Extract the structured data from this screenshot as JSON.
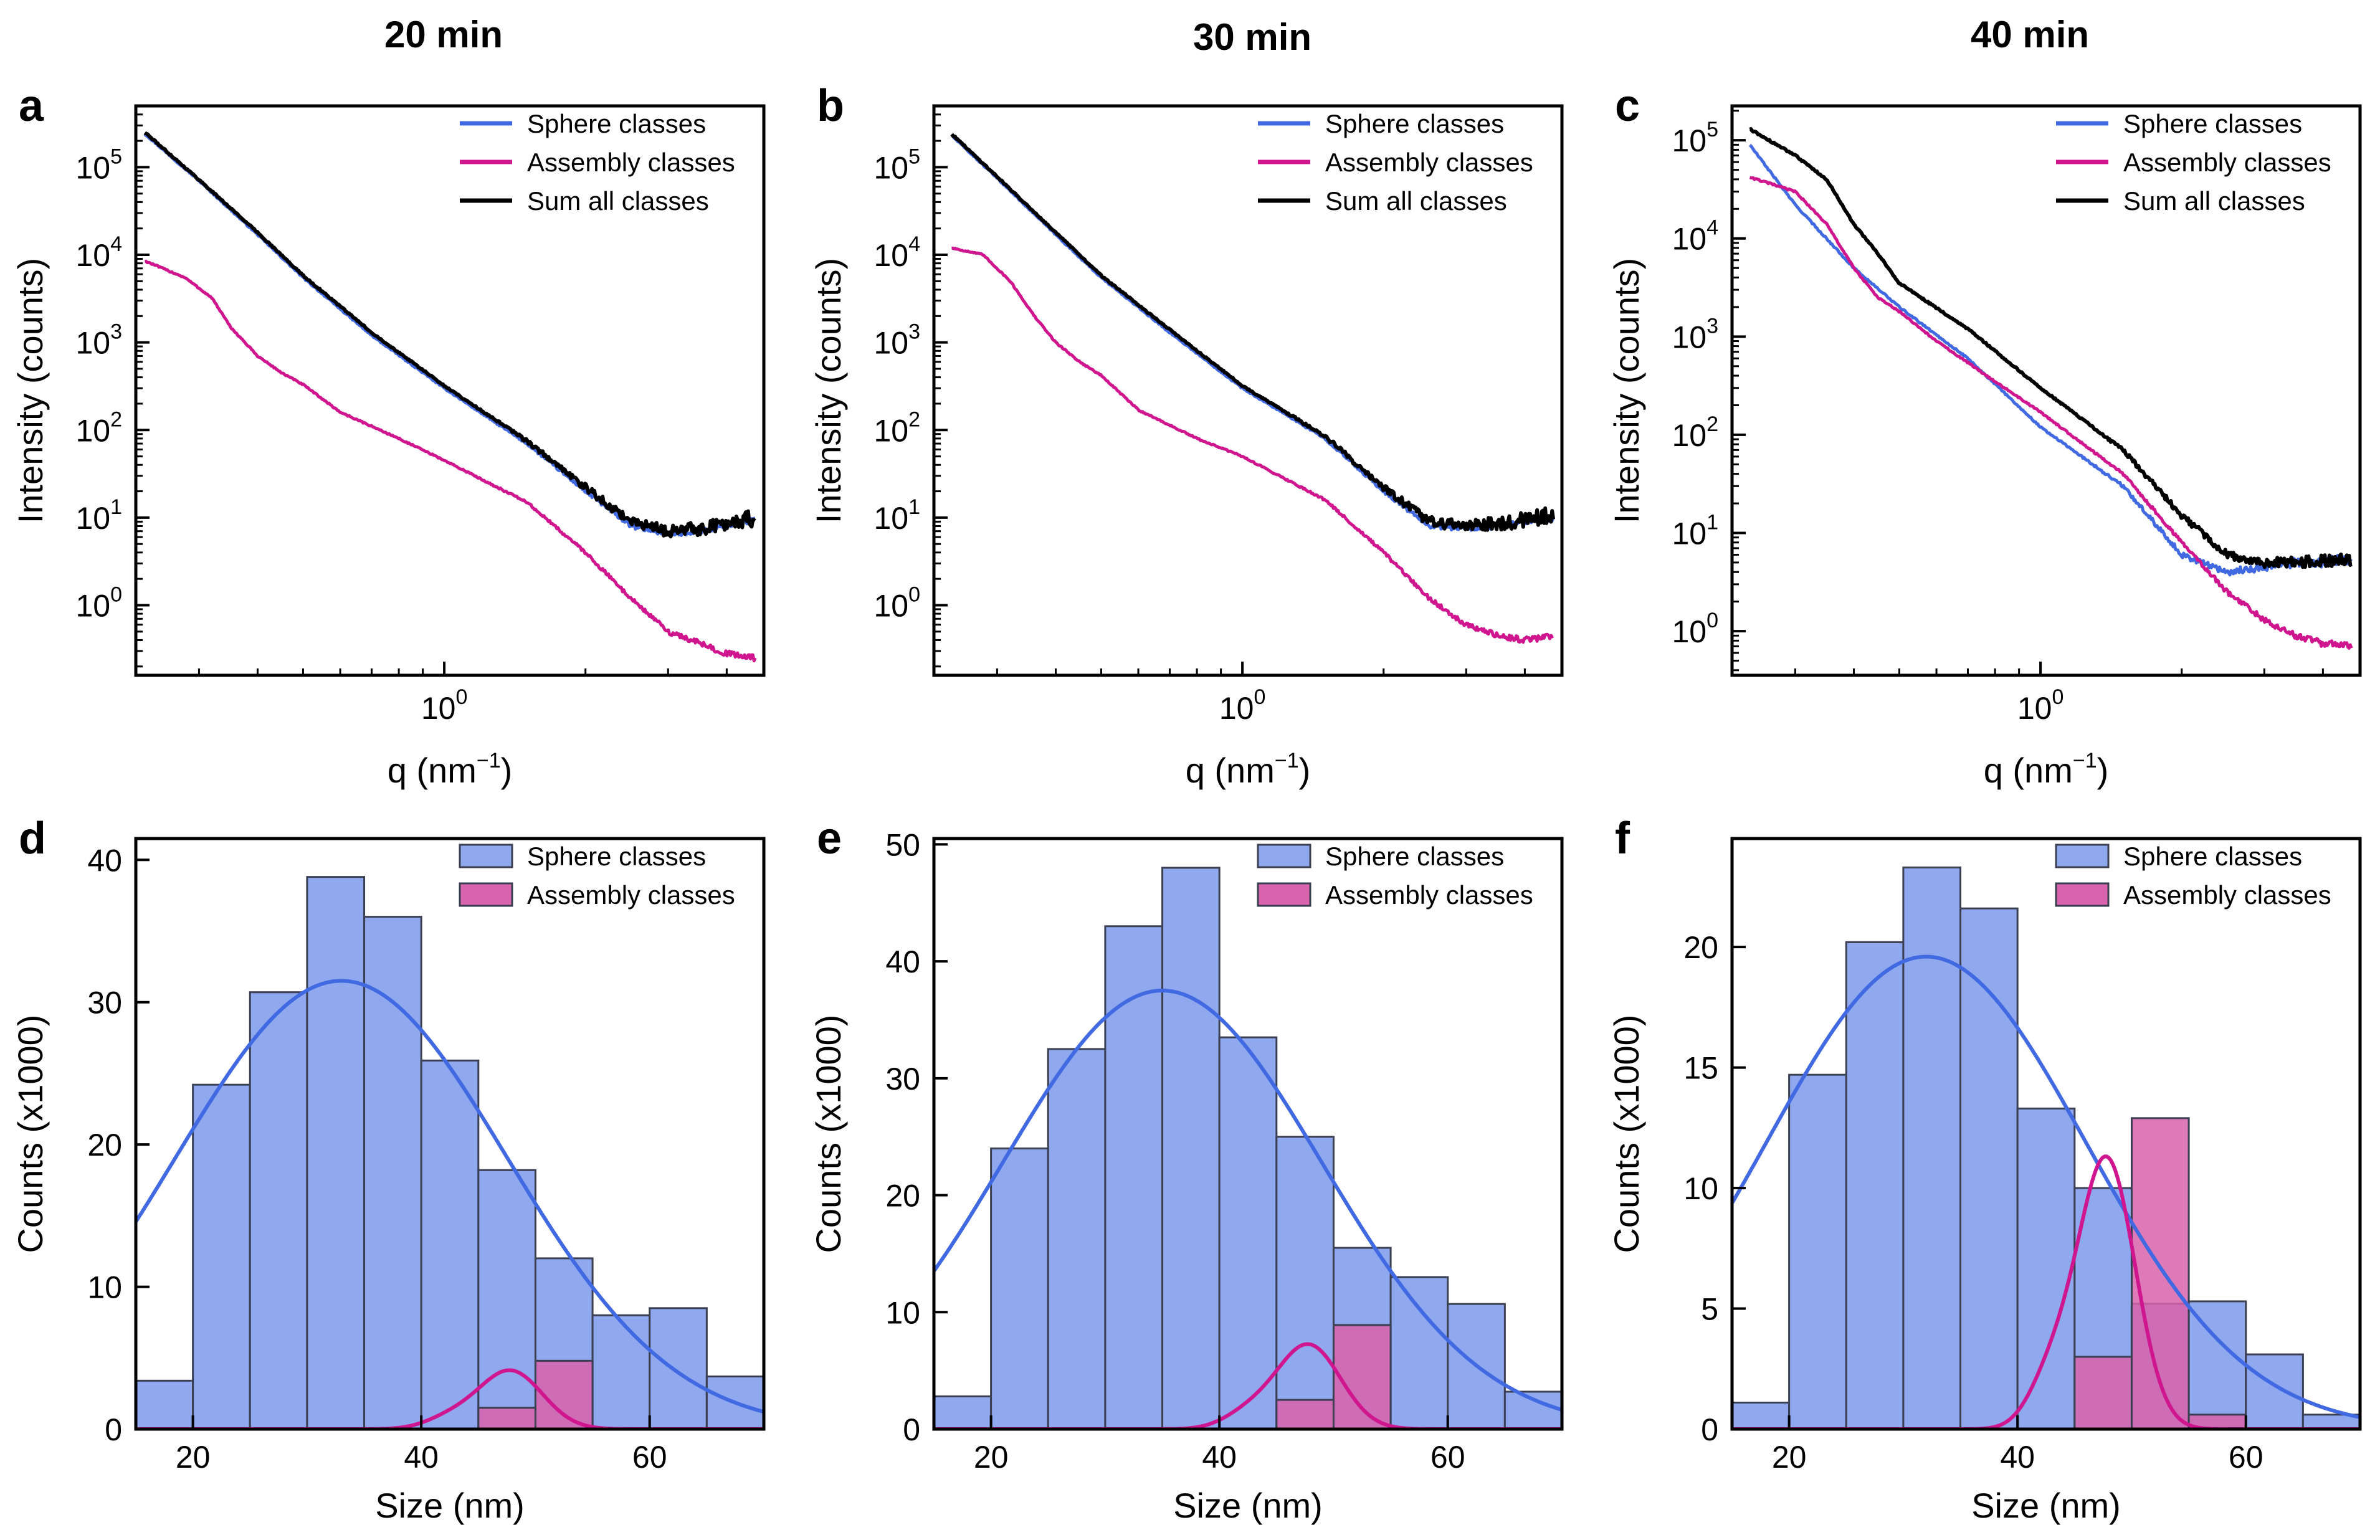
{
  "column_titles": [
    "20 min",
    "30 min",
    "40 min"
  ],
  "colors": {
    "sphere": "#4169e1",
    "assembly": "#d0168f",
    "sum": "#000000",
    "sphere_hist_fill": "#8fa8ee",
    "assembly_hist_fill": "#d963ac"
  },
  "chart_data": [
    {
      "panel": "a",
      "column_title": "20 min",
      "type": "line",
      "scale": "log-log",
      "xlabel": "q (nm",
      "xlabel_sup": "−1",
      "xlabel_tail": ")",
      "ylabel": "Intensity (counts)",
      "xlim": [
        0.22,
        4.8
      ],
      "ylim_exp": [
        -0.8,
        5.7
      ],
      "xticks": [
        {
          "value": 1,
          "label": "10",
          "sup": "0"
        }
      ],
      "yticks": [
        {
          "value": 0,
          "label": "10",
          "sup": "0"
        },
        {
          "value": 1,
          "label": "10",
          "sup": "1"
        },
        {
          "value": 2,
          "label": "10",
          "sup": "2"
        },
        {
          "value": 3,
          "label": "10",
          "sup": "3"
        },
        {
          "value": 4,
          "label": "10",
          "sup": "4"
        },
        {
          "value": 5,
          "label": "10",
          "sup": "5"
        }
      ],
      "legend": [
        "Sphere classes",
        "Assembly classes",
        "Sum all classes"
      ],
      "series": [
        {
          "name": "Sphere classes",
          "color": "#4169e1",
          "noise": 0.03,
          "points": [
            [
              0.23,
              240000
            ],
            [
              0.3,
              70000
            ],
            [
              0.4,
              17000
            ],
            [
              0.5,
              5500
            ],
            [
              0.7,
              1200
            ],
            [
              1.0,
              300
            ],
            [
              1.5,
              70
            ],
            [
              2.0,
              20
            ],
            [
              2.5,
              8
            ],
            [
              3.0,
              6.5
            ],
            [
              3.5,
              7
            ],
            [
              4.0,
              8
            ],
            [
              4.6,
              9.5
            ]
          ]
        },
        {
          "name": "Assembly classes",
          "color": "#d0168f",
          "noise": 0.03,
          "points": [
            [
              0.23,
              8500
            ],
            [
              0.28,
              5500
            ],
            [
              0.32,
              3200
            ],
            [
              0.35,
              1500
            ],
            [
              0.4,
              700
            ],
            [
              0.45,
              450
            ],
            [
              0.5,
              330
            ],
            [
              0.6,
              160
            ],
            [
              0.8,
              80
            ],
            [
              1.0,
              45
            ],
            [
              1.5,
              15
            ],
            [
              2.0,
              4
            ],
            [
              2.5,
              1.2
            ],
            [
              3.0,
              0.5
            ],
            [
              3.5,
              0.37
            ],
            [
              4.0,
              0.28
            ],
            [
              4.6,
              0.25
            ]
          ]
        },
        {
          "name": "Sum all classes",
          "color": "#000000",
          "noise": 0.09,
          "points": [
            [
              0.23,
              250000
            ],
            [
              0.3,
              72000
            ],
            [
              0.4,
              18000
            ],
            [
              0.5,
              5800
            ],
            [
              0.7,
              1300
            ],
            [
              1.0,
              320
            ],
            [
              1.5,
              75
            ],
            [
              2.0,
              22
            ],
            [
              2.5,
              9
            ],
            [
              3.0,
              7
            ],
            [
              3.5,
              7.5
            ],
            [
              4.0,
              8.5
            ],
            [
              4.6,
              10
            ]
          ]
        }
      ]
    },
    {
      "panel": "b",
      "column_title": "30 min",
      "type": "line",
      "scale": "log-log",
      "xlabel": "q (nm",
      "xlabel_sup": "−1",
      "xlabel_tail": ")",
      "ylabel": "Intensity (counts)",
      "xlim": [
        0.22,
        4.8
      ],
      "ylim_exp": [
        -0.8,
        5.7
      ],
      "xticks": [
        {
          "value": 1,
          "label": "10",
          "sup": "0"
        }
      ],
      "yticks": [
        {
          "value": 0,
          "label": "10",
          "sup": "0"
        },
        {
          "value": 1,
          "label": "10",
          "sup": "1"
        },
        {
          "value": 2,
          "label": "10",
          "sup": "2"
        },
        {
          "value": 3,
          "label": "10",
          "sup": "3"
        },
        {
          "value": 4,
          "label": "10",
          "sup": "4"
        },
        {
          "value": 5,
          "label": "10",
          "sup": "5"
        }
      ],
      "legend": [
        "Sphere classes",
        "Assembly classes",
        "Sum all classes"
      ],
      "series": [
        {
          "name": "Sphere classes",
          "color": "#4169e1",
          "noise": 0.03,
          "points": [
            [
              0.24,
              230000
            ],
            [
              0.3,
              75000
            ],
            [
              0.4,
              17000
            ],
            [
              0.5,
              5500
            ],
            [
              0.7,
              1300
            ],
            [
              1.0,
              300
            ],
            [
              1.5,
              80
            ],
            [
              2.0,
              20
            ],
            [
              2.5,
              8
            ],
            [
              3.0,
              7.5
            ],
            [
              3.5,
              8
            ],
            [
              4.0,
              9
            ],
            [
              4.6,
              10
            ]
          ]
        },
        {
          "name": "Assembly classes",
          "color": "#d0168f",
          "noise": 0.03,
          "points": [
            [
              0.24,
              12000
            ],
            [
              0.28,
              10000
            ],
            [
              0.32,
              5000
            ],
            [
              0.36,
              2000
            ],
            [
              0.4,
              1000
            ],
            [
              0.45,
              600
            ],
            [
              0.5,
              420
            ],
            [
              0.6,
              170
            ],
            [
              0.8,
              80
            ],
            [
              1.0,
              50
            ],
            [
              1.5,
              16
            ],
            [
              2.0,
              4
            ],
            [
              2.5,
              1.2
            ],
            [
              3.0,
              0.6
            ],
            [
              3.5,
              0.45
            ],
            [
              4.0,
              0.4
            ],
            [
              4.6,
              0.45
            ]
          ]
        },
        {
          "name": "Sum all classes",
          "color": "#000000",
          "noise": 0.09,
          "points": [
            [
              0.24,
              240000
            ],
            [
              0.3,
              78000
            ],
            [
              0.4,
              18000
            ],
            [
              0.5,
              5800
            ],
            [
              0.7,
              1400
            ],
            [
              1.0,
              320
            ],
            [
              1.5,
              85
            ],
            [
              2.0,
              22
            ],
            [
              2.5,
              9
            ],
            [
              3.0,
              8
            ],
            [
              3.5,
              8.5
            ],
            [
              4.0,
              9.5
            ],
            [
              4.6,
              11
            ]
          ]
        }
      ]
    },
    {
      "panel": "c",
      "column_title": "40 min",
      "type": "line",
      "scale": "log-log",
      "xlabel": "q (nm",
      "xlabel_sup": "−1",
      "xlabel_tail": ")",
      "ylabel": "Intensity (counts)",
      "xlim": [
        0.22,
        4.8
      ],
      "ylim_exp": [
        -0.45,
        5.35
      ],
      "xticks": [
        {
          "value": 1,
          "label": "10",
          "sup": "0"
        }
      ],
      "yticks": [
        {
          "value": 0,
          "label": "10",
          "sup": "0"
        },
        {
          "value": 1,
          "label": "10",
          "sup": "1"
        },
        {
          "value": 2,
          "label": "10",
          "sup": "2"
        },
        {
          "value": 3,
          "label": "10",
          "sup": "3"
        },
        {
          "value": 4,
          "label": "10",
          "sup": "4"
        },
        {
          "value": 5,
          "label": "10",
          "sup": "5"
        }
      ],
      "legend": [
        "Sphere classes",
        "Assembly classes",
        "Sum all classes"
      ],
      "series": [
        {
          "name": "Sphere classes",
          "color": "#4169e1",
          "noise": 0.05,
          "points": [
            [
              0.24,
              90000
            ],
            [
              0.3,
              22000
            ],
            [
              0.4,
              5000
            ],
            [
              0.5,
              2000
            ],
            [
              0.7,
              600
            ],
            [
              1.0,
              120
            ],
            [
              1.5,
              30
            ],
            [
              2.0,
              6
            ],
            [
              2.5,
              4
            ],
            [
              3.0,
              4.5
            ],
            [
              3.5,
              5
            ],
            [
              4.0,
              5
            ],
            [
              4.6,
              5.5
            ]
          ]
        },
        {
          "name": "Assembly classes",
          "color": "#d0168f",
          "noise": 0.03,
          "points": [
            [
              0.24,
              42000
            ],
            [
              0.3,
              30000
            ],
            [
              0.35,
              14000
            ],
            [
              0.4,
              5000
            ],
            [
              0.45,
              2500
            ],
            [
              0.5,
              1800
            ],
            [
              0.6,
              900
            ],
            [
              0.8,
              350
            ],
            [
              1.0,
              170
            ],
            [
              1.5,
              40
            ],
            [
              2.0,
              8
            ],
            [
              2.5,
              2.5
            ],
            [
              3.0,
              1.3
            ],
            [
              3.5,
              0.9
            ],
            [
              4.0,
              0.75
            ],
            [
              4.6,
              0.7
            ]
          ]
        },
        {
          "name": "Sum all classes",
          "color": "#000000",
          "noise": 0.06,
          "points": [
            [
              0.24,
              130000
            ],
            [
              0.3,
              70000
            ],
            [
              0.35,
              40000
            ],
            [
              0.4,
              14000
            ],
            [
              0.45,
              7000
            ],
            [
              0.5,
              3500
            ],
            [
              0.7,
              1200
            ],
            [
              1.0,
              300
            ],
            [
              1.5,
              70
            ],
            [
              2.0,
              15
            ],
            [
              2.5,
              6
            ],
            [
              3.0,
              5
            ],
            [
              3.5,
              5
            ],
            [
              4.0,
              5.2
            ],
            [
              4.6,
              5.5
            ]
          ]
        }
      ]
    },
    {
      "panel": "d",
      "type": "bar",
      "xlabel": "Size (nm)",
      "ylabel": "Counts (x1000)",
      "xlim": [
        15,
        70
      ],
      "ylim": [
        0,
        41.5
      ],
      "xticks": [
        20,
        40,
        60
      ],
      "yticks": [
        0,
        10,
        20,
        30,
        40
      ],
      "legend": [
        "Sphere classes",
        "Assembly classes"
      ],
      "bin_edges": [
        10,
        15,
        20,
        25,
        30,
        35,
        40,
        45,
        50,
        55,
        60,
        65,
        70,
        75
      ],
      "series": [
        {
          "name": "Sphere classes",
          "values": [
            0,
            3.4,
            24.2,
            30.7,
            38.8,
            36.0,
            25.9,
            18.2,
            12.0,
            8.0,
            8.5,
            3.7,
            0
          ]
        },
        {
          "name": "Assembly classes",
          "values": [
            0,
            0,
            0,
            0,
            0,
            0,
            0,
            1.5,
            4.8,
            0,
            0,
            0,
            0
          ]
        }
      ],
      "kde": [
        {
          "name": "Sphere classes",
          "mean": 33,
          "sd": 14.5,
          "peak": 31.5
        },
        {
          "name": "Assembly classes",
          "mean": 47.8,
          "sd": 2.8,
          "peak": 4.1,
          "shoulder": {
            "mean": 42.5,
            "sd": 2.2,
            "peak": 0.7
          }
        }
      ]
    },
    {
      "panel": "e",
      "type": "bar",
      "xlabel": "Size (nm)",
      "ylabel": "Counts (x1000)",
      "xlim": [
        15,
        70
      ],
      "ylim": [
        0,
        50.5
      ],
      "xticks": [
        20,
        40,
        60
      ],
      "yticks": [
        0,
        10,
        20,
        30,
        40,
        50
      ],
      "legend": [
        "Sphere classes",
        "Assembly classes"
      ],
      "bin_edges": [
        10,
        15,
        20,
        25,
        30,
        35,
        40,
        45,
        50,
        55,
        60,
        65,
        70,
        75
      ],
      "series": [
        {
          "name": "Sphere classes",
          "values": [
            0,
            2.8,
            24.0,
            32.5,
            43.0,
            48.0,
            33.5,
            25.0,
            15.5,
            13.0,
            10.7,
            3.2,
            0
          ]
        },
        {
          "name": "Assembly classes",
          "values": [
            0,
            0,
            0,
            0,
            0,
            0,
            0,
            2.5,
            8.9,
            0,
            0,
            0,
            0
          ]
        }
      ],
      "kde": [
        {
          "name": "Sphere classes",
          "mean": 35,
          "sd": 14,
          "peak": 37.5
        },
        {
          "name": "Assembly classes",
          "mean": 47.8,
          "sd": 2.8,
          "peak": 7.2,
          "shoulder": {
            "mean": 42.5,
            "sd": 2.2,
            "peak": 1.2
          }
        }
      ]
    },
    {
      "panel": "f",
      "type": "bar",
      "xlabel": "Size (nm)",
      "ylabel": "Counts (x1000)",
      "xlim": [
        15,
        70
      ],
      "ylim": [
        0,
        24.5
      ],
      "xticks": [
        20,
        40,
        60
      ],
      "yticks": [
        0,
        5,
        10,
        15,
        20
      ],
      "legend": [
        "Sphere classes",
        "Assembly classes"
      ],
      "bin_edges": [
        10,
        15,
        20,
        25,
        30,
        35,
        40,
        45,
        50,
        55,
        60,
        65,
        70,
        75
      ],
      "series": [
        {
          "name": "Sphere classes",
          "values": [
            0,
            1.1,
            14.7,
            20.2,
            23.3,
            21.6,
            13.3,
            10.0,
            5.2,
            5.3,
            3.1,
            0.6,
            0
          ]
        },
        {
          "name": "Assembly classes",
          "values": [
            0,
            0,
            0,
            0,
            0,
            0,
            0,
            3.0,
            12.9,
            0.6,
            0,
            0,
            0
          ]
        }
      ],
      "kde": [
        {
          "name": "Sphere classes",
          "mean": 32,
          "sd": 14,
          "peak": 19.6
        },
        {
          "name": "Assembly classes",
          "mean": 47.8,
          "sd": 2.5,
          "peak": 11.2,
          "shoulder": {
            "mean": 43.0,
            "sd": 2.0,
            "peak": 2.0
          }
        }
      ]
    }
  ]
}
